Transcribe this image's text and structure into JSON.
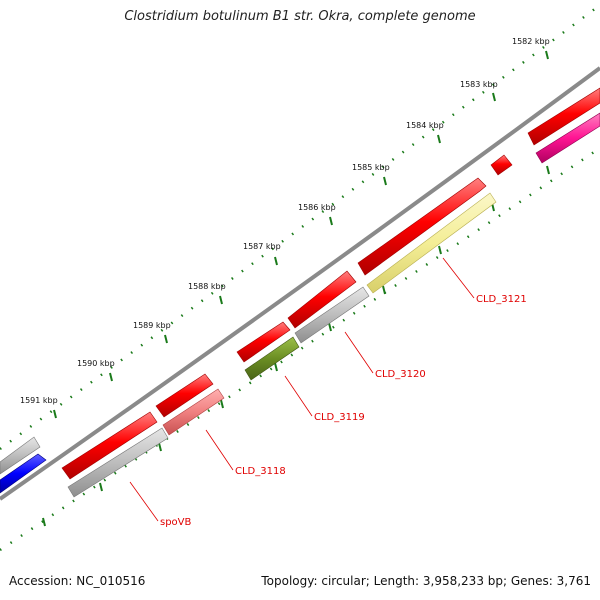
{
  "title": "Clostridium botulinum B1 str. Okra, complete genome",
  "footer": {
    "accession": "Accession: NC_010516",
    "info": "Topology: circular; Length: 3,958,233 bp; Genes: 3,761"
  },
  "scale_labels": [
    "1582 kbp",
    "1583 kbp",
    "1584 kbp",
    "1585 kbp",
    "1586 kbp",
    "1587 kbp",
    "1588 kbp",
    "1589 kbp",
    "1590 kbp",
    "1591 kbp"
  ],
  "gene_labels": [
    "CLD_3121",
    "CLD_3120",
    "CLD_3119",
    "CLD_3118",
    "spoVB"
  ],
  "colors": {
    "backbone": "#8a8a8a",
    "cds_red": "#ff0000",
    "gray": "#bdbdbd",
    "yellow": "#f4ee96",
    "olive": "#6b8e23",
    "salmon": "#f08080",
    "magenta": "#ff1493",
    "blue": "#0000ff",
    "tick_green": "#1a7a1a",
    "label_red": "#e00000"
  }
}
